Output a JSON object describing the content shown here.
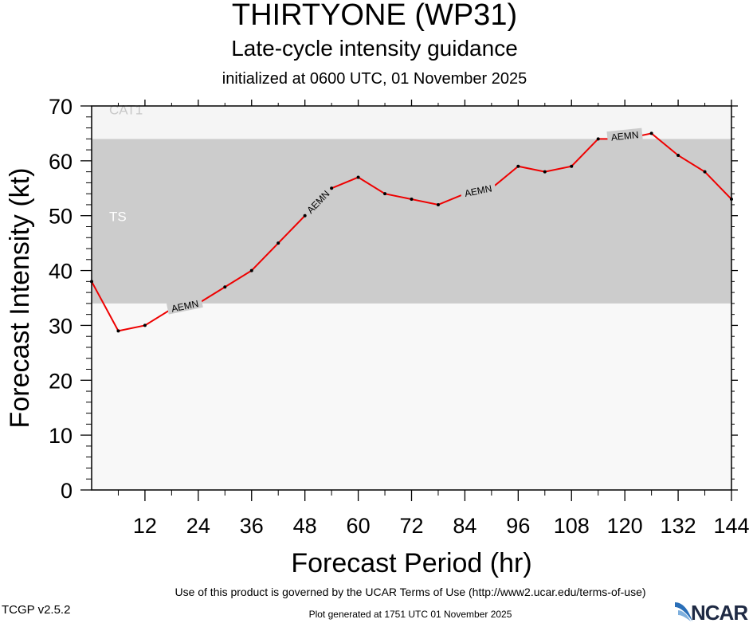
{
  "header": {
    "title": "THIRTYONE (WP31)",
    "subtitle": "Late-cycle intensity guidance",
    "init": "initialized at 0600 UTC, 01 November 2025"
  },
  "footer": {
    "terms": "Use of this product is governed by the UCAR Terms of Use (http://www2.ucar.edu/terms-of-use)",
    "version": "TCGP v2.5.2",
    "generated": "Plot generated at 1751 UTC   01 November 2025",
    "logo": "NCAR"
  },
  "chart_data": {
    "type": "line",
    "title": "THIRTYONE (WP31)",
    "subtitle": "Late-cycle intensity guidance",
    "xlabel": "Forecast Period (hr)",
    "ylabel": "Forecast Intensity (kt)",
    "xlim": [
      0,
      144
    ],
    "ylim": [
      0,
      70
    ],
    "xticks": [
      12,
      24,
      36,
      48,
      60,
      72,
      84,
      96,
      108,
      120,
      132,
      144
    ],
    "yticks": [
      0,
      10,
      20,
      30,
      40,
      50,
      60,
      70
    ],
    "bands": [
      {
        "label": "TS",
        "from": 34,
        "to": 64,
        "color": "#cccccc",
        "text_color": "#ffffff"
      },
      {
        "label": "CAT1",
        "from": 64,
        "to": 70,
        "color": "#f5f5f5",
        "text_color": "#c8c8c8"
      }
    ],
    "background_color": "#f8f8f8",
    "series": [
      {
        "name": "AEMN",
        "color": "#ee0000",
        "x": [
          0,
          6,
          12,
          18,
          24,
          30,
          36,
          42,
          48,
          54,
          60,
          66,
          72,
          78,
          84,
          90,
          96,
          102,
          108,
          114,
          120,
          126,
          132,
          138,
          144
        ],
        "y": [
          38,
          29,
          30,
          33,
          34,
          37,
          40,
          45,
          50,
          55,
          57,
          54,
          53,
          52,
          54,
          55,
          59,
          58,
          59,
          64,
          64,
          65,
          61,
          58,
          53
        ]
      }
    ]
  }
}
